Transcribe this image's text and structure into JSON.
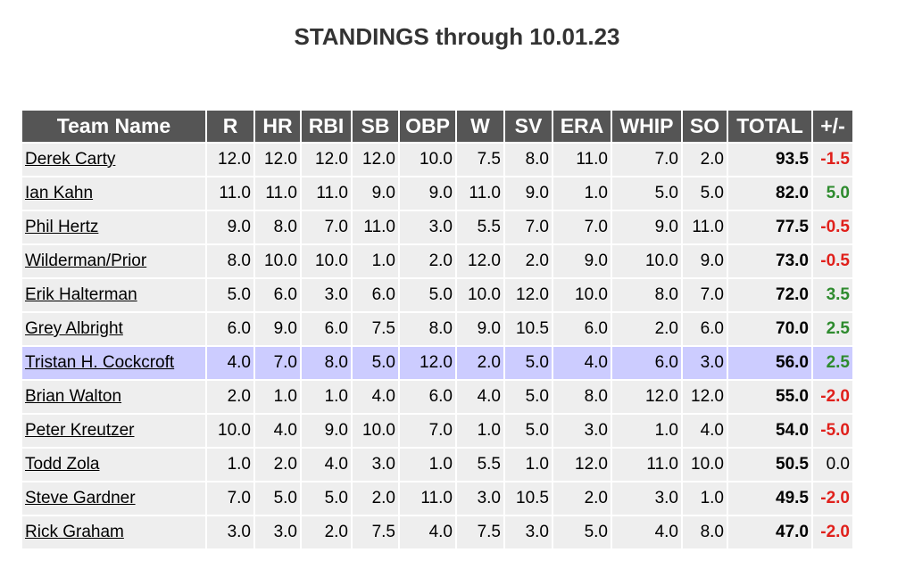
{
  "title": "STANDINGS through 10.01.23",
  "table": {
    "header": [
      "Team Name",
      "R",
      "HR",
      "RBI",
      "SB",
      "OBP",
      "W",
      "SV",
      "ERA",
      "WHIP",
      "SO",
      "TOTAL",
      "+/-"
    ],
    "rows": [
      [
        "Derek Carty",
        "12.0",
        "12.0",
        "12.0",
        "12.0",
        "10.0",
        "7.5",
        "8.0",
        "11.0",
        "7.0",
        "2.0",
        "93.5",
        "-1.5"
      ],
      [
        "Ian Kahn",
        "11.0",
        "11.0",
        "11.0",
        "9.0",
        "9.0",
        "11.0",
        "9.0",
        "1.0",
        "5.0",
        "5.0",
        "82.0",
        "5.0"
      ],
      [
        "Phil Hertz",
        "9.0",
        "8.0",
        "7.0",
        "11.0",
        "3.0",
        "5.5",
        "7.0",
        "7.0",
        "9.0",
        "11.0",
        "77.5",
        "-0.5"
      ],
      [
        "Wilderman/Prior",
        "8.0",
        "10.0",
        "10.0",
        "1.0",
        "2.0",
        "12.0",
        "2.0",
        "9.0",
        "10.0",
        "9.0",
        "73.0",
        "-0.5"
      ],
      [
        "Erik Halterman",
        "5.0",
        "6.0",
        "3.0",
        "6.0",
        "5.0",
        "10.0",
        "12.0",
        "10.0",
        "8.0",
        "7.0",
        "72.0",
        "3.5"
      ],
      [
        "Grey Albright",
        "6.0",
        "9.0",
        "6.0",
        "7.5",
        "8.0",
        "9.0",
        "10.5",
        "6.0",
        "2.0",
        "6.0",
        "70.0",
        "2.5"
      ],
      [
        "Tristan H. Cockcroft",
        "4.0",
        "7.0",
        "8.0",
        "5.0",
        "12.0",
        "2.0",
        "5.0",
        "4.0",
        "6.0",
        "3.0",
        "56.0",
        "2.5"
      ],
      [
        "Brian Walton",
        "2.0",
        "1.0",
        "1.0",
        "4.0",
        "6.0",
        "4.0",
        "5.0",
        "8.0",
        "12.0",
        "12.0",
        "55.0",
        "-2.0"
      ],
      [
        "Peter Kreutzer",
        "10.0",
        "4.0",
        "9.0",
        "10.0",
        "7.0",
        "1.0",
        "5.0",
        "3.0",
        "1.0",
        "4.0",
        "54.0",
        "-5.0"
      ],
      [
        "Todd Zola",
        "1.0",
        "2.0",
        "4.0",
        "3.0",
        "1.0",
        "5.5",
        "1.0",
        "12.0",
        "11.0",
        "10.0",
        "50.5",
        "0.0"
      ],
      [
        "Steve Gardner",
        "7.0",
        "5.0",
        "5.0",
        "2.0",
        "11.0",
        "3.0",
        "10.5",
        "2.0",
        "3.0",
        "1.0",
        "49.5",
        "-2.0"
      ],
      [
        "Rick Graham",
        "3.0",
        "3.0",
        "2.0",
        "7.5",
        "4.0",
        "7.5",
        "3.0",
        "5.0",
        "4.0",
        "8.0",
        "47.0",
        "-2.0"
      ]
    ]
  }
}
